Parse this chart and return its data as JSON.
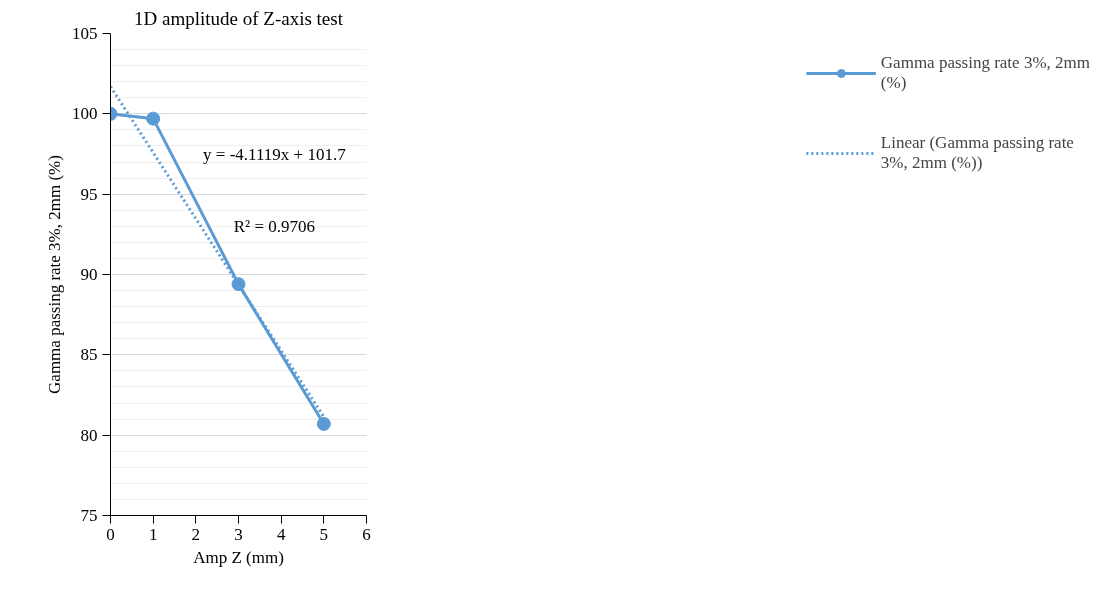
{
  "chart_data": {
    "type": "line",
    "title": "1D amplitude of Z-axis test",
    "xlabel": "Amp Z (mm)",
    "ylabel": "Gamma passing rate 3%, 2mm (%)",
    "x": [
      0,
      1,
      3,
      5
    ],
    "series": [
      {
        "name": "Gamma passing rate 3%, 2mm (%)",
        "color": "#5b9bd5",
        "values": [
          100,
          99.7,
          89.4,
          80.7
        ],
        "marker": "circle",
        "line_style": "solid"
      },
      {
        "name": "Linear (Gamma passing rate 3%, 2mm (%))",
        "color": "#5b9bd5",
        "x": [
          0,
          5
        ],
        "values": [
          101.7,
          81.14
        ],
        "marker": "none",
        "line_style": "dotted"
      }
    ],
    "annotations": [
      "y = -4.1119x + 101.7",
      "R² = 0.9706"
    ],
    "xlim": [
      0,
      6
    ],
    "xticks": [
      0,
      1,
      2,
      3,
      4,
      5,
      6
    ],
    "ylim": [
      75,
      105
    ],
    "yticks": [
      75,
      80,
      85,
      90,
      95,
      100,
      105
    ],
    "grid": "y",
    "legend": "right"
  }
}
